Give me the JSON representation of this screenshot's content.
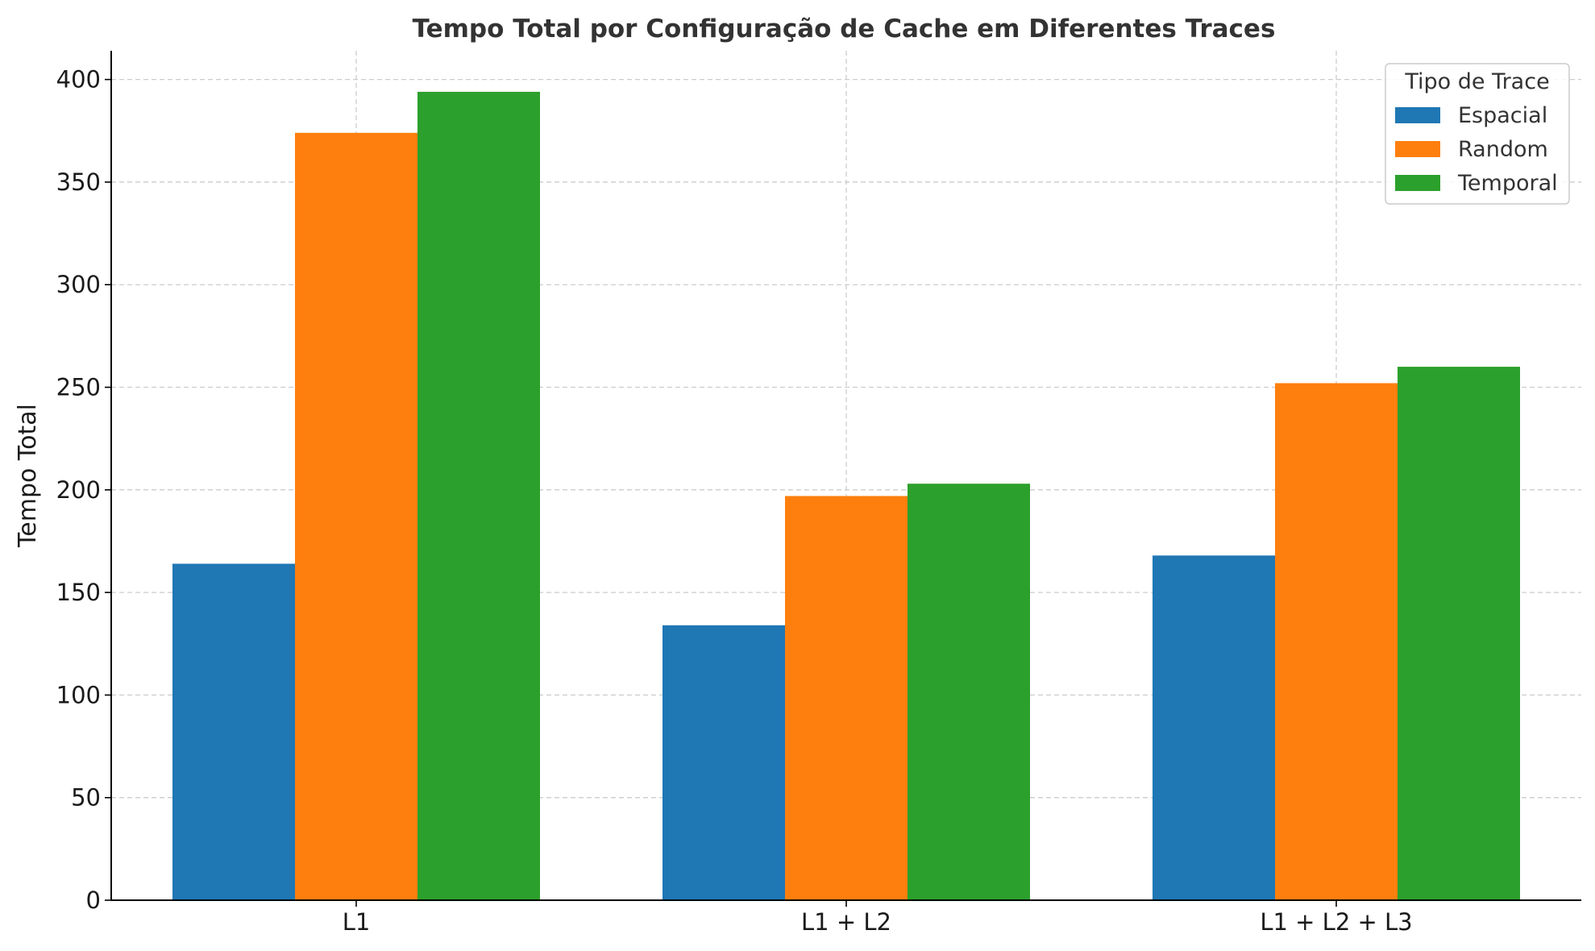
{
  "chart_data": {
    "type": "bar",
    "title": "Tempo Total por Configuração de Cache em Diferentes Traces",
    "xlabel": "",
    "ylabel": "Tempo Total",
    "categories": [
      "L1",
      "L1 + L2",
      "L1 + L2 + L3"
    ],
    "series": [
      {
        "name": "Espacial",
        "values": [
          164,
          134,
          168
        ],
        "color": "#1f77b4"
      },
      {
        "name": "Random",
        "values": [
          374,
          197,
          252
        ],
        "color": "#ff7f0e"
      },
      {
        "name": "Temporal",
        "values": [
          394,
          203,
          260
        ],
        "color": "#2ca02c"
      }
    ],
    "ylim": [
      0,
      414
    ],
    "yticks": [
      0,
      50,
      100,
      150,
      200,
      250,
      300,
      350,
      400
    ],
    "ytick_labels": [
      "0",
      "50",
      "100",
      "150",
      "200",
      "250",
      "300",
      "350",
      "400"
    ],
    "grid": true,
    "legend": {
      "title": "Tipo de Trace",
      "placement": "top-right"
    }
  }
}
